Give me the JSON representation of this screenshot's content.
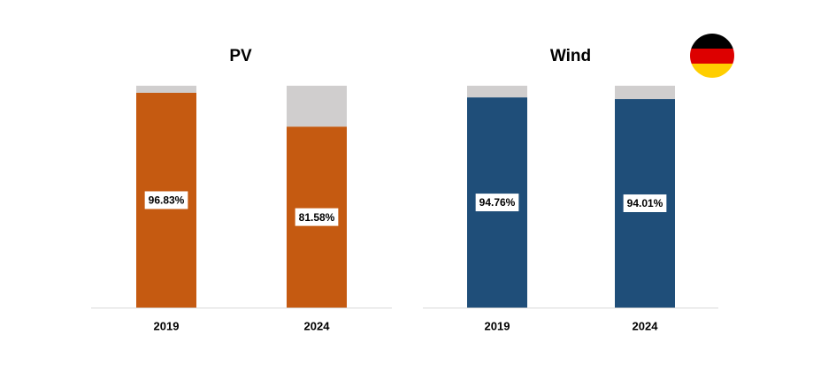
{
  "chart_data": [
    {
      "type": "bar",
      "stacked": true,
      "title": "PV",
      "categories": [
        "2019",
        "2024"
      ],
      "ylim": [
        0,
        100
      ],
      "series": [
        {
          "color": "#c55a11",
          "values": [
            96.83,
            81.58
          ],
          "value_labels": [
            "96.83%",
            "81.58%"
          ]
        },
        {
          "color": "#d0cece",
          "values": [
            3.17,
            18.42
          ]
        }
      ]
    },
    {
      "type": "bar",
      "stacked": true,
      "title": "Wind",
      "categories": [
        "2019",
        "2024"
      ],
      "ylim": [
        0,
        100
      ],
      "series": [
        {
          "color": "#1f4e79",
          "values": [
            94.76,
            94.01
          ],
          "value_labels": [
            "94.76%",
            "94.01%"
          ]
        },
        {
          "color": "#d0cece",
          "values": [
            5.24,
            5.99
          ]
        }
      ]
    }
  ]
}
